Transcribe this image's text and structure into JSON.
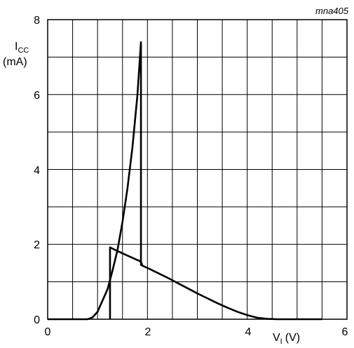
{
  "chart_data": {
    "type": "line",
    "figure_code": "mna405",
    "ylabel": {
      "symbol": "I",
      "subscript": "CC",
      "unit": "(mA)"
    },
    "xlabel": {
      "symbol": "V",
      "subscript": "I",
      "unit": "(V)"
    },
    "xlim": [
      0,
      6
    ],
    "ylim": [
      0,
      8
    ],
    "x_ticks": [
      "0",
      "2",
      "4",
      "6"
    ],
    "y_ticks": [
      "0",
      "2",
      "4",
      "6",
      "8"
    ],
    "grid": true,
    "series": [
      {
        "values": [
          [
            0,
            0
          ],
          [
            0.8,
            0
          ],
          [
            0.9,
            0.05
          ],
          [
            1.0,
            0.2
          ],
          [
            1.1,
            0.5
          ],
          [
            1.2,
            0.8
          ],
          [
            1.3,
            1.3
          ],
          [
            1.4,
            1.85
          ],
          [
            1.5,
            2.6
          ],
          [
            1.6,
            3.5
          ],
          [
            1.7,
            4.6
          ],
          [
            1.8,
            6.0
          ],
          [
            1.87,
            7.4
          ],
          [
            1.87,
            1.45
          ],
          [
            1.9,
            1.43
          ],
          [
            2.0,
            1.37
          ],
          [
            2.2,
            1.24
          ],
          [
            2.4,
            1.11
          ],
          [
            2.6,
            0.97
          ],
          [
            2.8,
            0.83
          ],
          [
            3.0,
            0.69
          ],
          [
            3.2,
            0.56
          ],
          [
            3.4,
            0.43
          ],
          [
            3.6,
            0.31
          ],
          [
            3.8,
            0.2
          ],
          [
            4.0,
            0.11
          ],
          [
            4.2,
            0.04
          ],
          [
            4.4,
            0.01
          ],
          [
            4.6,
            0
          ],
          [
            5.5,
            0
          ]
        ]
      },
      {
        "values": [
          [
            1.25,
            0
          ],
          [
            1.25,
            1.92
          ],
          [
            1.4,
            1.82
          ],
          [
            1.6,
            1.7
          ],
          [
            1.8,
            1.58
          ],
          [
            1.87,
            1.54
          ],
          [
            1.9,
            1.43
          ]
        ]
      }
    ]
  }
}
